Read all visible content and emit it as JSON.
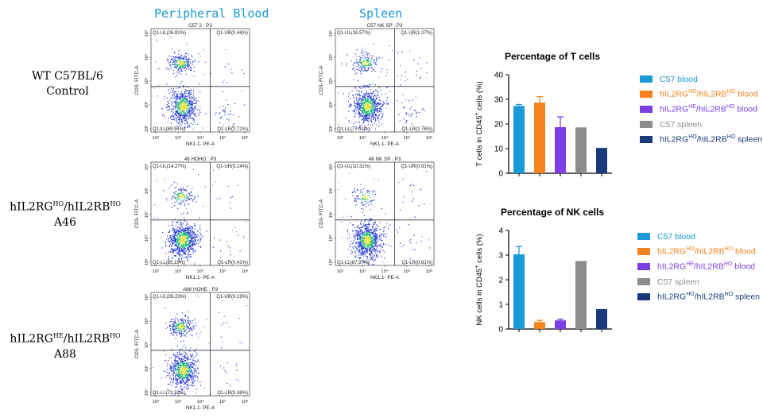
{
  "columns": {
    "peripheral_blood": "Peripheral Blood",
    "spleen": "Spleen"
  },
  "rows": [
    {
      "line1": "WT C57BL/6",
      "line2": "Control"
    },
    {
      "line1_a": "hIL2RG",
      "line1_sup1": "HO",
      "line1_b": "/hIL2RB",
      "line1_sup2": "HO",
      "line2": "A46"
    },
    {
      "line1_a": "hIL2RG",
      "line1_sup1": "HE",
      "line1_b": "/hIL2RB",
      "line1_sup2": "HO",
      "line2": "A88"
    }
  ],
  "colors": {
    "c57_blood": "#1a9ad6",
    "hoho_blood": "#f5831f",
    "hehe_blood": "#7b3fe4",
    "c57_spleen": "#8c8c8c",
    "hoho_spleen": "#1b3a7a",
    "dots": "#2a3bd6",
    "dense": "#27c17a",
    "core": "#e8e030"
  },
  "flow_panels": [
    {
      "id": "wt-blood",
      "title": "C57 2 : P3",
      "UL": "Q1-UL(26.91%)",
      "UR": "Q1-UR(0.44%)",
      "LL": "Q1-LL(69.94%)",
      "LR": "Q1-LR(2.71%)",
      "xlabel": "NK1.1- PE-A",
      "ylabel": "CD3- FITC-A"
    },
    {
      "id": "wt-spleen",
      "title": "C57 NK SP : P3",
      "UL": "Q1-UL(18.57%)",
      "UR": "Q1-UR(1.27%)",
      "LL": "Q1-LL(77.41%)",
      "LR": "Q1-LR(2.76%)",
      "xlabel": "NK1.1- PE-A",
      "ylabel": "CD3- FITC-A"
    },
    {
      "id": "a46-blood",
      "title": "46 HOHO : P3",
      "UL": "Q1-UL(14.27%)",
      "UR": "Q1-UR(0.14%)",
      "LL": "Q1-LL(85.19%)",
      "LR": "Q1-LR(0.41%)",
      "xlabel": "NK1.1- PE-A",
      "ylabel": "CD3- FITC-A"
    },
    {
      "id": "a46-spleen",
      "title": "46 NK SP : P3",
      "UL": "Q1-UL(10.31%)",
      "UR": "Q1-UR(0.91%)",
      "LL": "Q1-LL(87.97%)",
      "LR": "Q1-LR(0.81%)",
      "xlabel": "NK1.1- PE-A",
      "ylabel": "CD3- FITC-A"
    },
    {
      "id": "a88-blood",
      "title": "A88 HOHE : P3",
      "UL": "Q1-UL(26.23%)",
      "UR": "Q1-UR(0.19%)",
      "LL": "Q1-LL(73.22%)",
      "LR": "Q1-LR(0.36%)",
      "xlabel": "NK1.1- PE-A",
      "ylabel": "CD3- FITC-A"
    }
  ],
  "flow_axis": {
    "x_ticks": [
      "10²",
      "10³",
      "10⁴",
      "10⁵",
      "10⁶"
    ],
    "y_ticks": [
      "10²",
      "10³",
      "10⁴",
      "10⁵",
      "10⁶"
    ]
  },
  "legend": [
    {
      "key": "c57_blood",
      "a": "C57 blood",
      "sup1": "",
      "b": "",
      "sup2": "",
      "c": ""
    },
    {
      "key": "hoho_blood",
      "a": "hIL2RG",
      "sup1": "HO",
      "b": "/hIL2RB",
      "sup2": "HO",
      "c": " blood"
    },
    {
      "key": "hehe_blood",
      "a": "hIL2RG",
      "sup1": "HE",
      "b": "/hIL2RB",
      "sup2": "HO",
      "c": " blood"
    },
    {
      "key": "c57_spleen",
      "a": "C57 spleen",
      "sup1": "",
      "b": "",
      "sup2": "",
      "c": ""
    },
    {
      "key": "hoho_spleen",
      "a": "hIL2RG",
      "sup1": "HO",
      "b": "/hIL2RB",
      "sup2": "HO",
      "c": " spleen"
    }
  ],
  "chart_data": [
    {
      "type": "bar",
      "title": "Percentage of T cells",
      "ylabel_a": "T cells in CD45",
      "ylabel_sup": "+",
      "ylabel_b": " cells (%)",
      "ylim": [
        0,
        40
      ],
      "yticks": [
        "0",
        "10",
        "20",
        "30",
        "40"
      ],
      "categories": [
        "C57 blood",
        "hIL2RGHO/hIL2RBHO blood",
        "hIL2RGHE/hIL2RBHO blood",
        "C57 spleen",
        "hIL2RGHO/hIL2RBHO spleen"
      ],
      "values": [
        27.3,
        28.7,
        18.7,
        18.6,
        10.3
      ],
      "errors": [
        0.6,
        2.4,
        4.2,
        0,
        0
      ]
    },
    {
      "type": "bar",
      "title": "Percentage of NK cells",
      "ylabel_a": "NK cells in CD45",
      "ylabel_sup": "+",
      "ylabel_b": " cells (%)",
      "ylim": [
        0,
        4
      ],
      "yticks": [
        "0",
        "1",
        "2",
        "3",
        "4"
      ],
      "categories": [
        "C57 blood",
        "hIL2RGHO/hIL2RBHO blood",
        "hIL2RGHE/hIL2RBHO blood",
        "C57 spleen",
        "hIL2RGHO/hIL2RBHO spleen"
      ],
      "values": [
        3.03,
        0.28,
        0.35,
        2.76,
        0.81
      ],
      "errors": [
        0.32,
        0.07,
        0.05,
        0,
        0
      ]
    }
  ]
}
